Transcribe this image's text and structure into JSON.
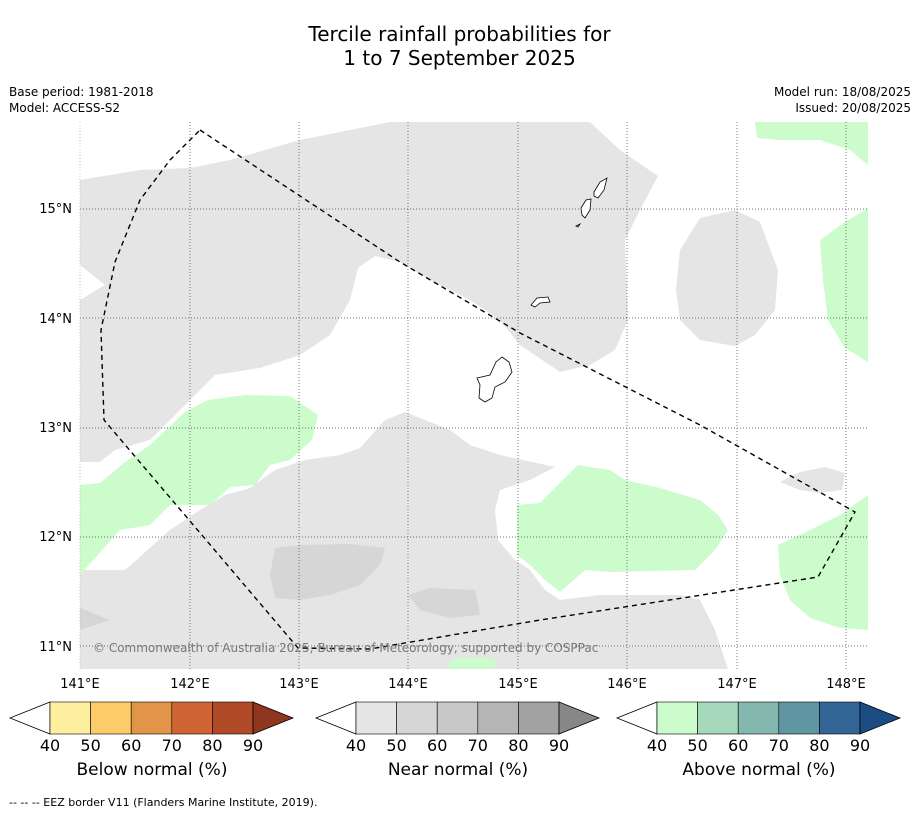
{
  "title_line1": "Tercile rainfall probabilities for",
  "title_line2": "1 to 7 September 2025",
  "meta": {
    "base_period": "Base period: 1981-2018",
    "model": "Model: ACCESS-S2",
    "model_run": "Model run: 18/08/2025",
    "issued": "Issued: 20/08/2025"
  },
  "map": {
    "lon_ticks": [
      "141°E",
      "142°E",
      "143°E",
      "144°E",
      "145°E",
      "146°E",
      "147°E",
      "148°E"
    ],
    "lat_ticks": [
      "15°N",
      "14°N",
      "13°N",
      "12°N",
      "11°N"
    ],
    "copyright": "© Commonwealth of Australia 2025, Bureau of Meteorology, supported by COSPPac",
    "colors": {
      "near_40": "#e5e5e5",
      "near_50": "#d6d6d6",
      "above_40": "#ccfccc"
    }
  },
  "colorbars": {
    "ticks": [
      "40",
      "50",
      "60",
      "70",
      "80",
      "90"
    ],
    "below": {
      "label": "Below normal (%)",
      "colors": [
        "#fdeea0",
        "#fdcb67",
        "#e29548",
        "#cf6535",
        "#b14a27",
        "#8f3620"
      ]
    },
    "near": {
      "label": "Near normal (%)",
      "colors": [
        "#e5e5e5",
        "#d6d6d6",
        "#c8c8c8",
        "#b5b5b5",
        "#a2a2a2",
        "#878787"
      ]
    },
    "above": {
      "label": "Above normal (%)",
      "colors": [
        "#ccfccc",
        "#a6d8bc",
        "#84b7ae",
        "#5f96a2",
        "#336596",
        "#1c4c84"
      ]
    }
  },
  "footnote": "--  --  -- EEZ border V11 (Flanders Marine Institute, 2019)."
}
